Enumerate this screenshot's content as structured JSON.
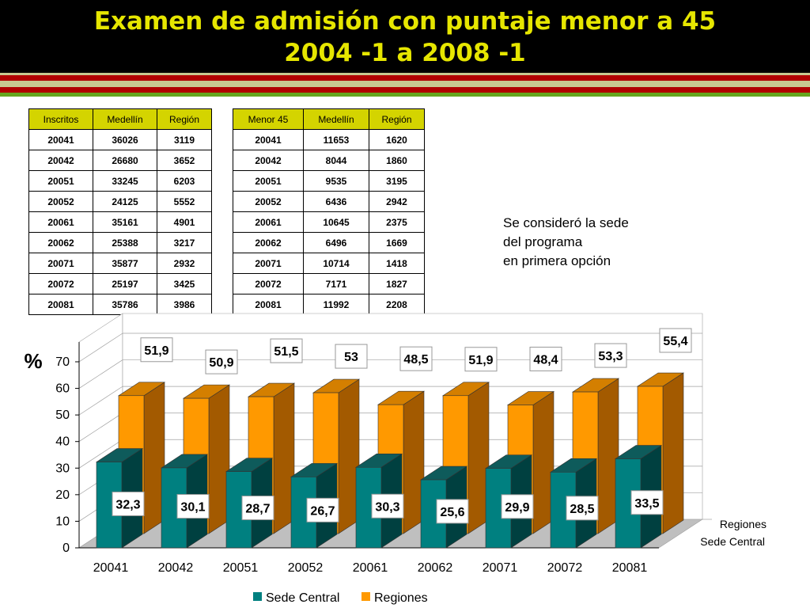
{
  "title": {
    "line1": "Examen de admisión con puntaje menor a 45",
    "line2": "2004 -1 a 2008 -1"
  },
  "colors": {
    "title": "#e6e600",
    "sede_central": "#008080",
    "regiones": "#ff9900",
    "stripe_red": "#b00000",
    "stripe_green": "#66a61e",
    "stripe_khaki": "#c8c890"
  },
  "table_inscritos": {
    "headers": [
      "Inscritos",
      "Medellín",
      "Región"
    ],
    "rows": [
      [
        "20041",
        "36026",
        "3119"
      ],
      [
        "20042",
        "26680",
        "3652"
      ],
      [
        "20051",
        "33245",
        "6203"
      ],
      [
        "20052",
        "24125",
        "5552"
      ],
      [
        "20061",
        "35161",
        "4901"
      ],
      [
        "20062",
        "25388",
        "3217"
      ],
      [
        "20071",
        "35877",
        "2932"
      ],
      [
        "20072",
        "25197",
        "3425"
      ],
      [
        "20081",
        "35786",
        "3986"
      ]
    ]
  },
  "table_menor45": {
    "headers": [
      "Menor 45",
      "Medellín",
      "Región"
    ],
    "rows": [
      [
        "20041",
        "11653",
        "1620"
      ],
      [
        "20042",
        "8044",
        "1860"
      ],
      [
        "20051",
        "9535",
        "3195"
      ],
      [
        "20052",
        "6436",
        "2942"
      ],
      [
        "20061",
        "10645",
        "2375"
      ],
      [
        "20062",
        "6496",
        "1669"
      ],
      [
        "20071",
        "10714",
        "1418"
      ],
      [
        "20072",
        "7171",
        "1827"
      ],
      [
        "20081",
        "11992",
        "2208"
      ]
    ]
  },
  "note": {
    "lines": [
      "Se consideró la sede",
      "del programa",
      "en primera opción"
    ]
  },
  "chart_data": {
    "type": "bar",
    "ylabel": "%",
    "ylim": [
      0,
      70
    ],
    "yticks": [
      0,
      10,
      20,
      30,
      40,
      50,
      60,
      70
    ],
    "categories": [
      "20041",
      "20042",
      "20051",
      "20052",
      "20061",
      "20062",
      "20071",
      "20072",
      "20081"
    ],
    "series": [
      {
        "name": "Sede Central",
        "values": [
          32.3,
          30.1,
          28.7,
          26.7,
          30.3,
          25.6,
          29.9,
          28.5,
          33.5
        ],
        "labels": [
          "32,3",
          "30,1",
          "28,7",
          "26,7",
          "30,3",
          "25,6",
          "29,9",
          "28,5",
          "33,5"
        ]
      },
      {
        "name": "Regiones",
        "values": [
          51.9,
          50.9,
          51.5,
          53,
          48.5,
          51.9,
          48.4,
          53.3,
          55.4
        ],
        "labels": [
          "51,9",
          "50,9",
          "51,5",
          "53",
          "48,5",
          "51,9",
          "48,4",
          "53,3",
          "55,4"
        ]
      }
    ],
    "depth_labels": [
      "Regiones",
      "Sede Central"
    ],
    "legend": [
      "Sede Central",
      "Regiones"
    ],
    "legend_position": "bottom",
    "grid": true
  }
}
